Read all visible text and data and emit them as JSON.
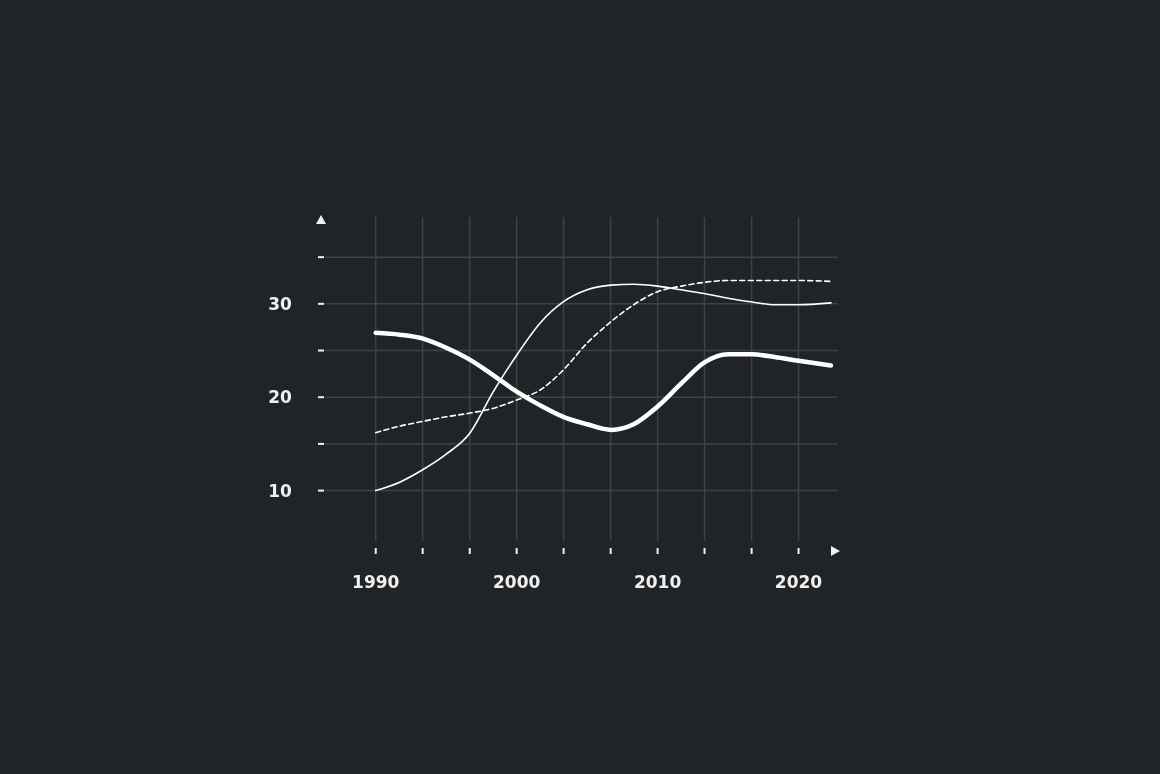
{
  "chart_data": {
    "type": "line",
    "xlim": [
      1986.4,
      2022.8
    ],
    "ylim": [
      4.6,
      39.3
    ],
    "xticks": [
      1990,
      {
        "value": 1993.33,
        "label": null
      },
      {
        "value": 1996.67,
        "label": null
      },
      2000,
      {
        "value": 2003.33,
        "label": null
      },
      {
        "value": 2006.67,
        "label": null
      },
      2010,
      {
        "value": 2013.33,
        "label": null
      },
      {
        "value": 2016.67,
        "label": null
      },
      2020
    ],
    "yticks": [
      10,
      {
        "value": 15,
        "label": null
      },
      20,
      {
        "value": 25,
        "label": null
      },
      30,
      {
        "value": 35,
        "label": null
      }
    ],
    "grid": true,
    "x": [
      1990,
      1991.7,
      1993.3,
      1995,
      1996.7,
      1998.3,
      2000,
      2001.7,
      2003.3,
      2005,
      2006.7,
      2008.3,
      2010,
      2011.7,
      2013.3,
      2015,
      2016.7,
      2018.3,
      2020,
      2022.3
    ],
    "series": [
      {
        "color": "#ffffff",
        "line_style": "solid",
        "values": [
          26.9,
          26.7,
          26.3,
          25.3,
          24.0,
          22.4,
          20.6,
          19.1,
          17.9,
          17.1,
          16.5,
          17.1,
          19.0,
          21.5,
          23.7,
          24.6,
          24.6,
          24.3,
          23.9,
          23.4
        ]
      },
      {
        "color": "#ffffff",
        "line_style": "solid",
        "values": [
          10.0,
          10.9,
          12.2,
          13.9,
          16.2,
          20.5,
          24.5,
          28.0,
          30.2,
          31.5,
          32.0,
          32.1,
          31.9,
          31.5,
          31.1,
          30.6,
          30.2,
          29.9,
          29.9,
          30.1
        ]
      },
      {
        "color": "#ffffff",
        "line_style": "dashed",
        "values": [
          16.2,
          16.9,
          17.4,
          17.9,
          18.3,
          18.8,
          19.7,
          20.8,
          22.9,
          25.8,
          28.1,
          29.9,
          31.3,
          31.9,
          32.3,
          32.5,
          32.5,
          32.5,
          32.5,
          32.4
        ]
      }
    ]
  }
}
